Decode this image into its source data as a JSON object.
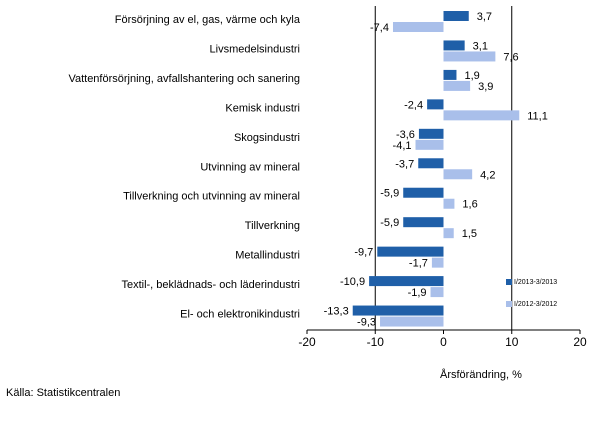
{
  "chart_data": {
    "type": "bar",
    "orientation": "horizontal",
    "categories": [
      "Försörjning av el, gas, värme och kyla",
      "Livsmedelsindustri",
      "Vattenförsörjning, avfallshantering och sanering",
      "Kemisk industri",
      "Skogsindustri",
      "Utvinning av mineral",
      "Tillverkning och utvinning av mineral",
      "Tillverkning",
      "Metallindustri",
      "Textil-, beklädnads- och läderindustri",
      "El- och elektronikindustri"
    ],
    "series": [
      {
        "name": "I/2013-3/2013",
        "color": "#1f5fa8",
        "values": [
          3.7,
          3.1,
          1.9,
          -2.4,
          -3.6,
          -3.7,
          -5.9,
          -5.9,
          -9.7,
          -10.9,
          -13.3
        ],
        "labels": [
          "3,7",
          "3,1",
          "1,9",
          "-2,4",
          "-3,6",
          "-3,7",
          "-5,9",
          "-5,9",
          "-9,7",
          "-10,9",
          "-13,3"
        ]
      },
      {
        "name": "I/2012-3/2012",
        "color": "#a9bfea",
        "values": [
          -7.4,
          7.6,
          3.9,
          11.1,
          -4.1,
          4.2,
          1.6,
          1.5,
          -1.7,
          -1.9,
          -9.3
        ],
        "labels": [
          "-7,4",
          "7,6",
          "3,9",
          "11,1",
          "-4,1",
          "4,2",
          "1,6",
          "1,5",
          "-1,7",
          "-1,9",
          "-9,3"
        ]
      }
    ],
    "xlim": [
      -20,
      20
    ],
    "xticks": [
      -20,
      -10,
      0,
      10,
      20
    ],
    "xlabel": "Årsförändring, %",
    "gridlines_at": [
      -10,
      10
    ],
    "legend_position": "right"
  },
  "source": "Källa: Statistikcentralen"
}
